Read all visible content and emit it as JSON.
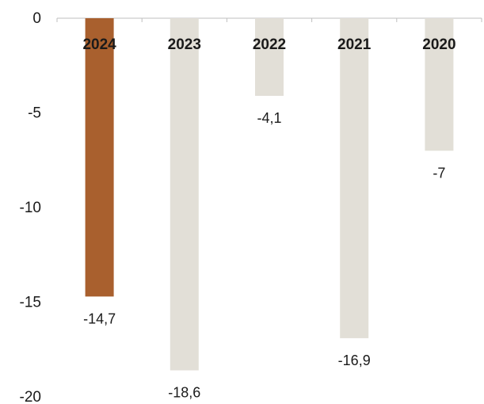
{
  "chart_data": {
    "type": "bar",
    "categories": [
      "2024",
      "2023",
      "2022",
      "2021",
      "2020"
    ],
    "values": [
      -14.7,
      -18.6,
      -4.1,
      -16.9,
      -7
    ],
    "value_labels": [
      "-14,7",
      "-18,6",
      "-4,1",
      "-16,9",
      "-7"
    ],
    "ylim": [
      -20,
      0
    ],
    "yticks": [
      0,
      -5,
      -10,
      -15,
      -20
    ],
    "ytick_labels": [
      "0",
      "-5",
      "-10",
      "-15",
      "-20"
    ],
    "highlight_index": 0,
    "colors": {
      "highlight": "#A9602E",
      "default": "#E2DFD7",
      "axis": "#BFBFBF"
    },
    "grid": false,
    "legend": "none",
    "title": "",
    "xlabel": "",
    "ylabel": ""
  }
}
